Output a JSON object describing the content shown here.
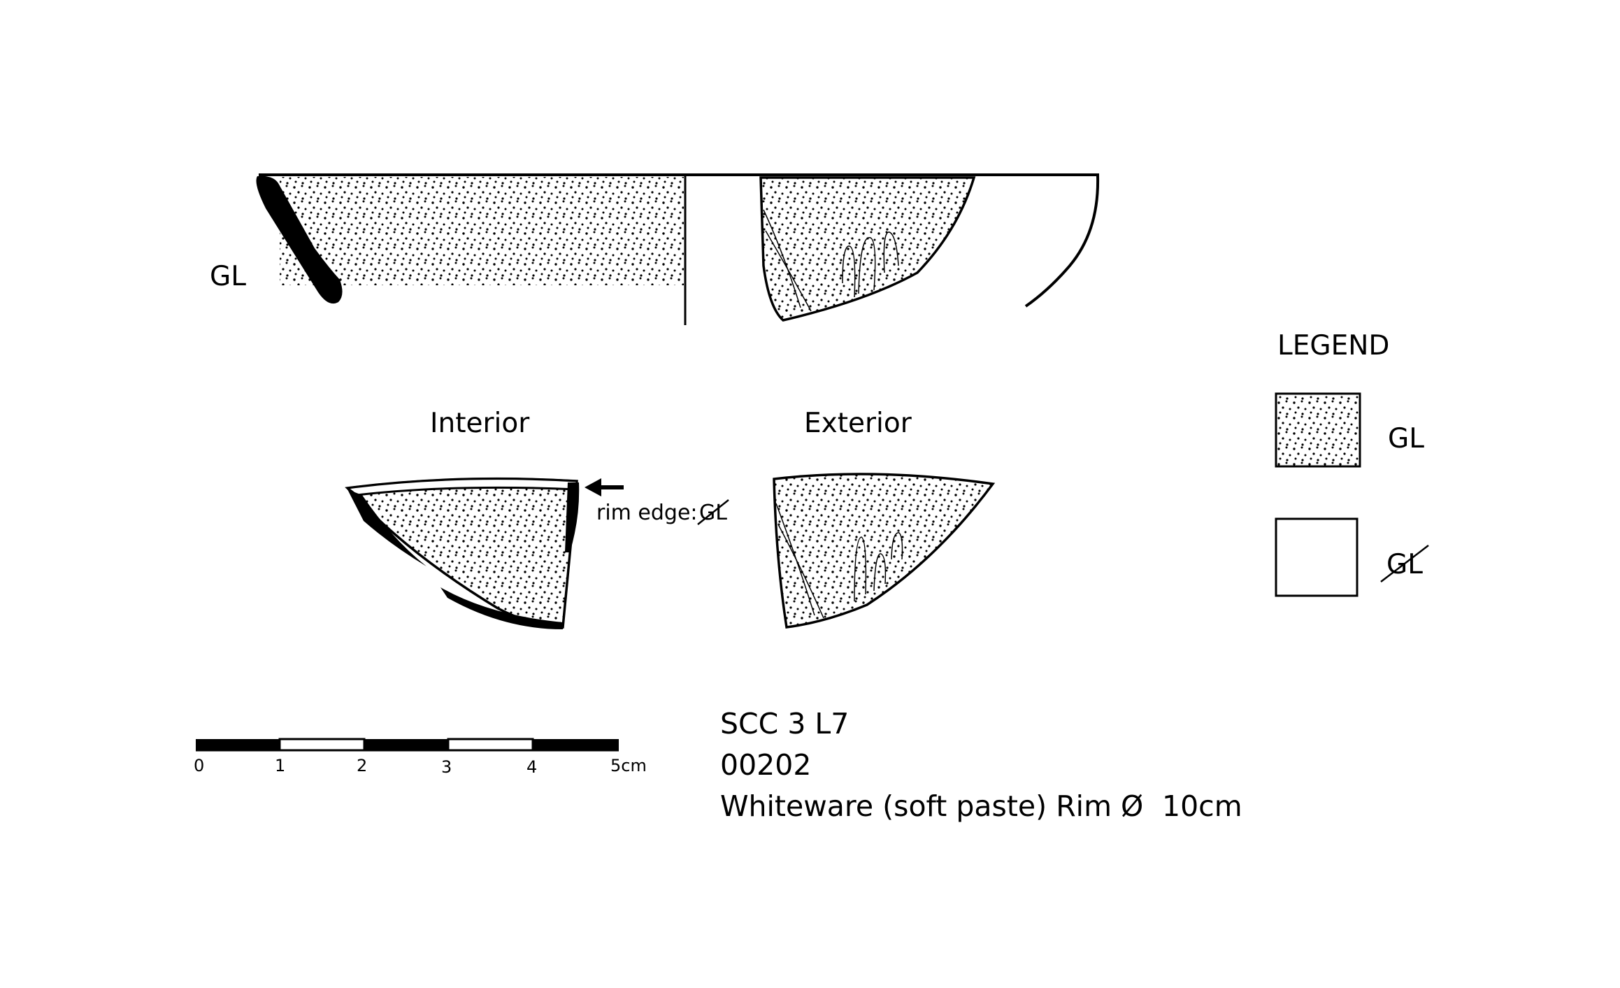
{
  "profile": {
    "side_label": "GL"
  },
  "views": {
    "interior_label": "Interior",
    "exterior_label": "Exterior",
    "rim_note_prefix": "rim edge:",
    "rim_note_struck": "GL"
  },
  "legend": {
    "title": "LEGEND",
    "items": [
      {
        "label": "GL",
        "pattern": "stippled",
        "struck": false
      },
      {
        "label": "GL",
        "pattern": "blank",
        "struck": true
      }
    ]
  },
  "scale_bar": {
    "ticks": [
      "0",
      "1",
      "2",
      "3",
      "4",
      "5cm"
    ]
  },
  "catalog": {
    "line1": "SCC 3 L7",
    "line2": "00202",
    "line3_text": "Whiteware (soft paste) Rim",
    "diameter_symbol": "Ø",
    "diameter_value": "10cm"
  },
  "colors": {
    "ink": "#000000",
    "paper": "#ffffff"
  }
}
